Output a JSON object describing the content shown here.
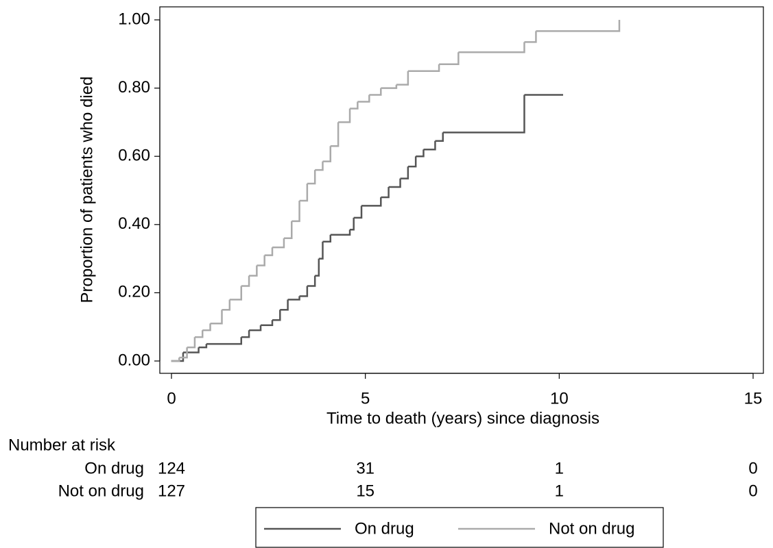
{
  "chart_data": {
    "type": "line",
    "step": true,
    "y_label": "Proportion of patients who died",
    "x_label": "Time to death (years) since diagnosis",
    "xlim": [
      0,
      15
    ],
    "xticks": [
      0,
      5,
      10,
      15
    ],
    "ylim": [
      0,
      1
    ],
    "yticks": [
      {
        "value": 0,
        "label": "0.00"
      },
      {
        "value": 0.2,
        "label": "0.20"
      },
      {
        "value": 0.4,
        "label": "0.40"
      },
      {
        "value": 0.6,
        "label": "0.60"
      },
      {
        "value": 0.8,
        "label": "0.80"
      },
      {
        "value": 1,
        "label": "1.00"
      }
    ],
    "series": [
      {
        "name": "On drug",
        "color": "#555555",
        "x": [
          0,
          0.3,
          0.7,
          0.9,
          1.8,
          2.0,
          2.3,
          2.6,
          2.8,
          3.0,
          3.3,
          3.5,
          3.7,
          3.8,
          3.9,
          4.1,
          4.6,
          4.7,
          4.9,
          5.4,
          5.6,
          5.9,
          6.1,
          6.3,
          6.5,
          6.8,
          7.0,
          9.1,
          10.1
        ],
        "values": [
          0,
          0.025,
          0.04,
          0.05,
          0.07,
          0.09,
          0.105,
          0.12,
          0.15,
          0.18,
          0.19,
          0.22,
          0.25,
          0.3,
          0.35,
          0.37,
          0.385,
          0.42,
          0.455,
          0.48,
          0.51,
          0.535,
          0.57,
          0.6,
          0.62,
          0.645,
          0.67,
          0.78,
          0.78
        ]
      },
      {
        "name": "Not on drug",
        "color": "#aaaaaa",
        "x": [
          0,
          0.2,
          0.4,
          0.6,
          0.8,
          1.0,
          1.3,
          1.5,
          1.8,
          2.0,
          2.2,
          2.4,
          2.6,
          2.9,
          3.1,
          3.3,
          3.5,
          3.7,
          3.9,
          4.1,
          4.3,
          4.6,
          4.8,
          5.1,
          5.4,
          5.8,
          6.1,
          6.9,
          7.4,
          9.1,
          9.4,
          11.55
        ],
        "values": [
          0,
          0.01,
          0.04,
          0.07,
          0.09,
          0.11,
          0.15,
          0.18,
          0.22,
          0.25,
          0.28,
          0.31,
          0.333,
          0.36,
          0.41,
          0.47,
          0.52,
          0.56,
          0.585,
          0.63,
          0.7,
          0.74,
          0.76,
          0.78,
          0.8,
          0.81,
          0.85,
          0.87,
          0.905,
          0.935,
          0.967,
          1.0
        ]
      }
    ],
    "risk_table": {
      "title": "Number at risk",
      "rows": [
        {
          "name": "On drug",
          "values": [
            124,
            31,
            1,
            0
          ]
        },
        {
          "name": "Not on drug",
          "values": [
            127,
            15,
            1,
            0
          ]
        }
      ]
    },
    "legend": "bottom"
  }
}
